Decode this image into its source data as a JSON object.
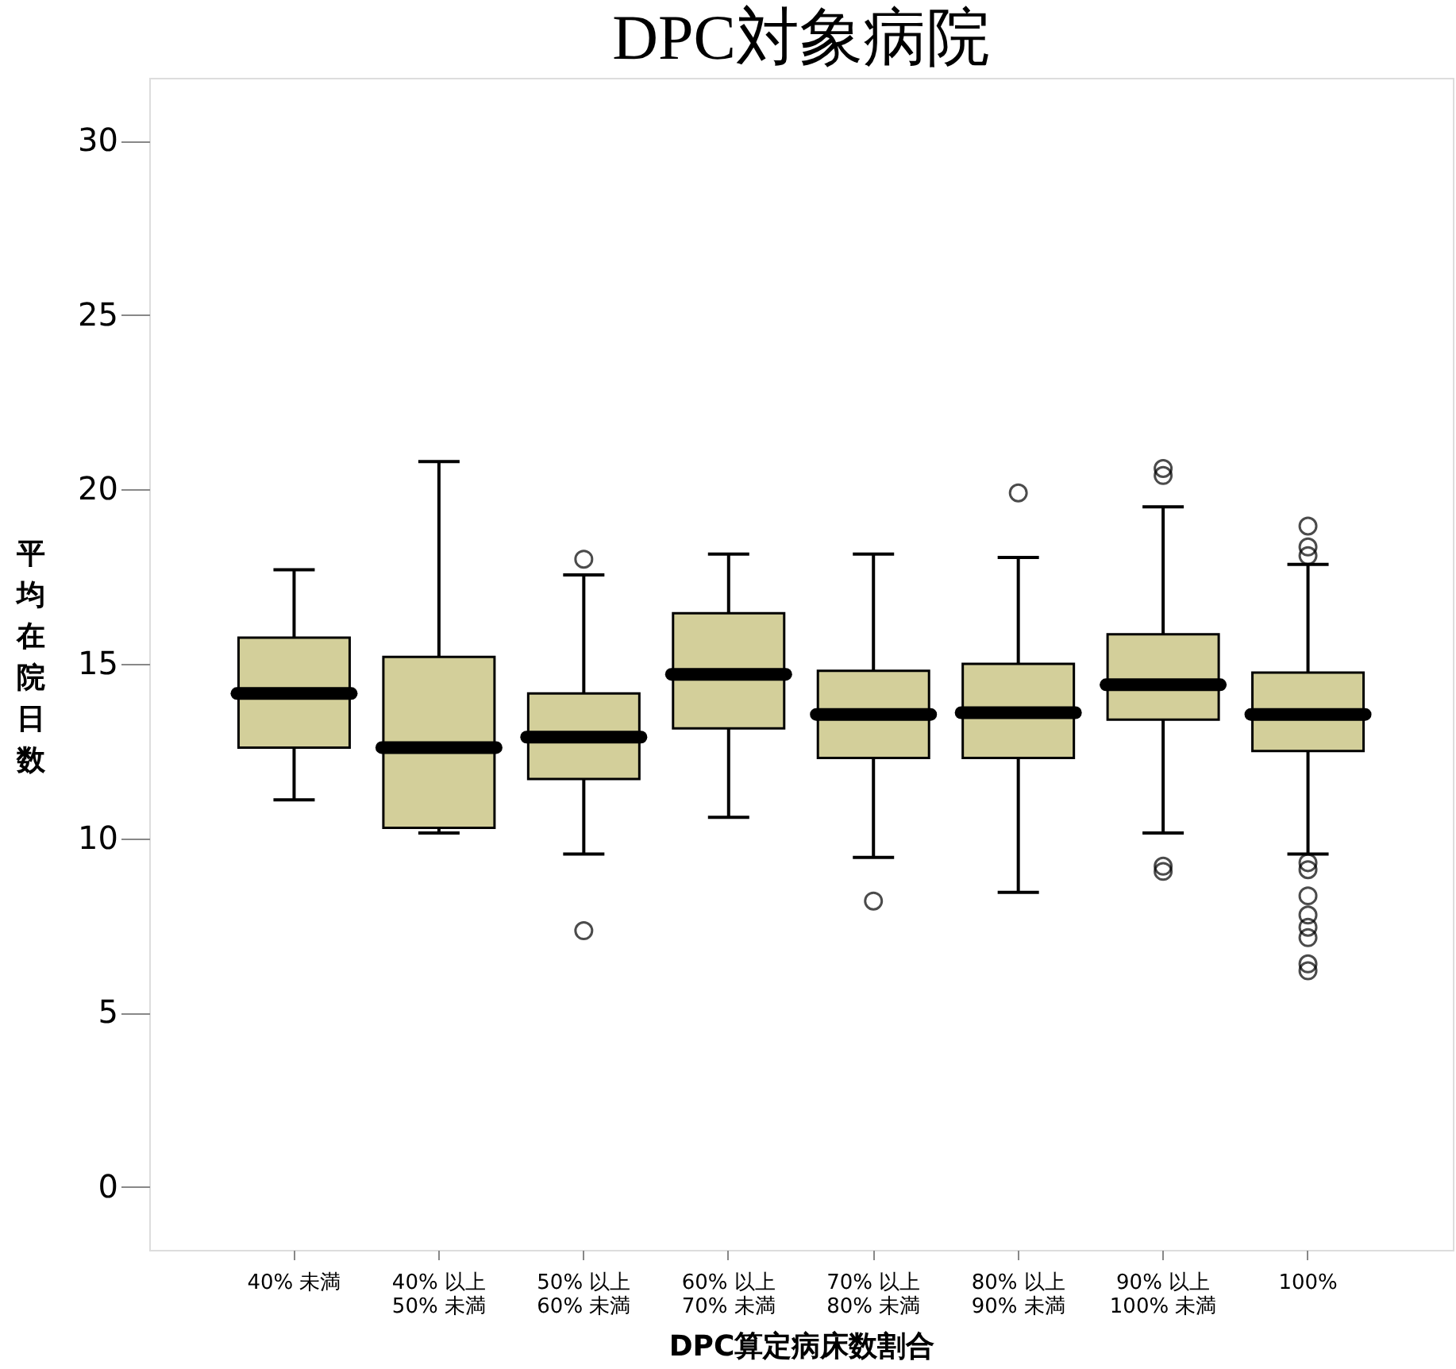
{
  "chart_data": {
    "type": "box",
    "title": "DPC対象病院",
    "xlabel": "DPC算定病床数割合",
    "ylabel": "平均在院日数",
    "categories": [
      "40% 未満",
      "40% 以上\n50% 未満",
      "50% 以上\n60% 未満",
      "60% 以上\n70% 未満",
      "70% 以上\n80% 未満",
      "80% 以上\n90% 未満",
      "90% 以上\n100% 未満",
      "100%"
    ],
    "series": [
      {
        "color": "#d3cf9a",
        "boxes": [
          {
            "low": 11.1,
            "q1": 12.6,
            "median": 14.15,
            "q3": 15.75,
            "high": 17.7
          },
          {
            "low": 10.15,
            "q1": 10.3,
            "median": 12.6,
            "q3": 15.2,
            "high": 20.8
          },
          {
            "low": 9.55,
            "q1": 11.7,
            "median": 12.9,
            "q3": 14.15,
            "high": 17.55,
            "outliers": [
              18.0,
              7.35
            ]
          },
          {
            "low": 10.6,
            "q1": 13.15,
            "median": 14.7,
            "q3": 16.45,
            "high": 18.15
          },
          {
            "low": 9.45,
            "q1": 12.3,
            "median": 13.55,
            "q3": 14.8,
            "high": 18.15,
            "outliers": [
              8.2
            ]
          },
          {
            "low": 8.45,
            "q1": 12.3,
            "median": 13.6,
            "q3": 15.0,
            "high": 18.05,
            "outliers": [
              19.9
            ]
          },
          {
            "low": 10.15,
            "q1": 13.4,
            "median": 14.4,
            "q3": 15.85,
            "high": 19.5,
            "outliers": [
              20.6,
              20.4,
              9.2,
              9.05
            ]
          },
          {
            "low": 9.55,
            "q1": 12.5,
            "median": 13.55,
            "q3": 14.75,
            "high": 17.85,
            "outliers": [
              18.95,
              18.35,
              18.1,
              9.3,
              9.1,
              8.35,
              7.8,
              7.45,
              7.15,
              6.4,
              6.2
            ]
          }
        ]
      }
    ],
    "ylim": [
      -1.8,
      31.8
    ],
    "yticks": [
      0,
      5,
      10,
      15,
      20,
      25,
      30
    ],
    "grid": false
  }
}
